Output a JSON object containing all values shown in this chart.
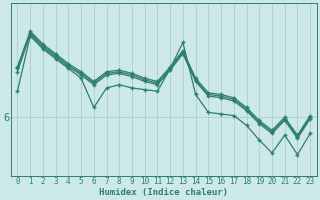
{
  "xlabel": "Humidex (Indice chaleur)",
  "background_color": "#cce9e7",
  "plot_bg_color": "#cce9e7",
  "grid_color": "#aacfcd",
  "line_color": "#2d7d74",
  "line_width": 0.9,
  "marker": "+",
  "marker_size": 3.5,
  "marker_ew": 1.0,
  "xlim": [
    -0.5,
    23.5
  ],
  "ylim": [
    4.2,
    9.5
  ],
  "x_ticks": [
    0,
    1,
    2,
    3,
    4,
    5,
    6,
    7,
    8,
    9,
    10,
    11,
    12,
    13,
    14,
    15,
    16,
    17,
    18,
    19,
    20,
    21,
    22,
    23
  ],
  "ytick_positions": [
    6
  ],
  "ytick_labels": [
    "6"
  ],
  "tick_fontsize": 5.5,
  "xlabel_fontsize": 6.5,
  "ytick_fontsize": 7.5,
  "series": [
    [
      6.8,
      8.5,
      8.1,
      7.8,
      7.5,
      7.2,
      6.3,
      6.9,
      7.0,
      6.9,
      6.85,
      6.8,
      7.5,
      8.3,
      6.7,
      6.15,
      6.1,
      6.05,
      5.75,
      5.3,
      4.9,
      5.45,
      4.85,
      5.5
    ],
    [
      7.4,
      8.55,
      8.15,
      7.85,
      7.55,
      7.3,
      7.0,
      7.3,
      7.35,
      7.25,
      7.1,
      7.0,
      7.45,
      7.95,
      7.1,
      6.65,
      6.6,
      6.5,
      6.2,
      5.8,
      5.5,
      5.9,
      5.35,
      5.95
    ],
    [
      7.5,
      8.6,
      8.2,
      7.9,
      7.6,
      7.35,
      7.05,
      7.35,
      7.4,
      7.3,
      7.15,
      7.05,
      7.5,
      8.0,
      7.15,
      6.7,
      6.65,
      6.55,
      6.25,
      5.85,
      5.55,
      5.95,
      5.4,
      6.0
    ],
    [
      7.55,
      8.65,
      8.25,
      7.95,
      7.65,
      7.4,
      7.1,
      7.4,
      7.45,
      7.35,
      7.2,
      7.1,
      7.55,
      8.05,
      7.2,
      6.75,
      6.7,
      6.6,
      6.3,
      5.9,
      5.6,
      6.0,
      5.45,
      6.05
    ]
  ]
}
